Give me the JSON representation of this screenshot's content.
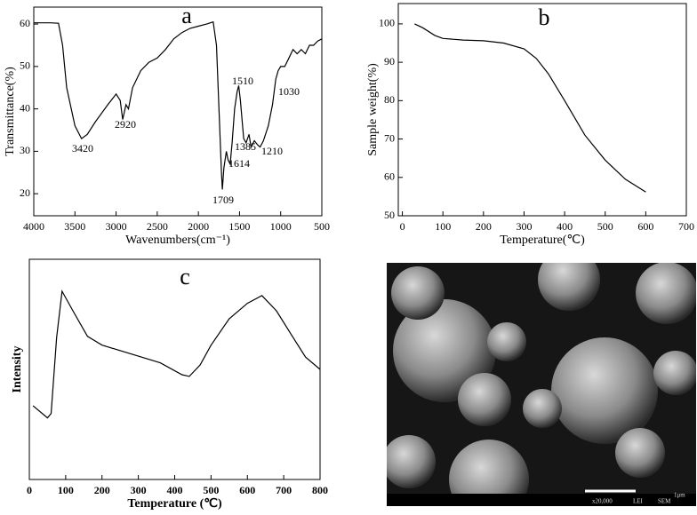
{
  "chart_data": [
    {
      "type": "line",
      "title": "a",
      "x_label": "Wavenumbers(cm⁻¹)",
      "y_label": "Transmittance(%)",
      "color": "#000000",
      "x": [
        4000,
        3800,
        3700,
        3650,
        3600,
        3500,
        3420,
        3350,
        3250,
        3100,
        3000,
        2950,
        2920,
        2880,
        2850,
        2800,
        2700,
        2600,
        2500,
        2400,
        2300,
        2200,
        2100,
        2000,
        1900,
        1820,
        1780,
        1750,
        1720,
        1709,
        1690,
        1660,
        1640,
        1614,
        1590,
        1560,
        1530,
        1510,
        1490,
        1450,
        1420,
        1385,
        1360,
        1320,
        1280,
        1250,
        1210,
        1150,
        1100,
        1060,
        1030,
        1000,
        950,
        900,
        850,
        800,
        750,
        700,
        650,
        600,
        550,
        500
      ],
      "values": [
        60.3,
        60.3,
        60.2,
        55,
        45,
        36,
        33,
        34,
        37,
        41,
        43.5,
        42,
        37.5,
        41,
        40,
        45,
        49,
        51,
        52,
        54,
        56.5,
        58,
        59,
        59.5,
        60,
        60.5,
        55,
        40,
        25,
        21,
        26,
        30,
        28,
        27,
        32,
        40,
        44,
        45.5,
        42,
        33,
        32,
        34,
        31,
        32.5,
        31.5,
        31,
        32.5,
        36,
        41,
        47,
        49,
        50,
        50,
        52,
        54,
        53,
        54,
        53,
        55,
        55,
        56,
        56.5
      ],
      "xlim": [
        4000,
        500
      ],
      "xticks": [
        4000,
        3500,
        3000,
        2500,
        2000,
        1500,
        1000,
        500
      ],
      "ylim": [
        14.8,
        64
      ],
      "yticks": [
        20,
        30,
        40,
        50,
        60
      ],
      "annotations": [
        "3420",
        "2920",
        "1709",
        "1614",
        "1510",
        "1385",
        "1210",
        "1030"
      ]
    },
    {
      "type": "line",
      "title": "b",
      "x_label": "Temperature(℃)",
      "y_label": "Sample weight(%)",
      "color": "#000000",
      "x": [
        30,
        50,
        80,
        100,
        150,
        200,
        250,
        300,
        330,
        360,
        400,
        450,
        500,
        550,
        600
      ],
      "values": [
        100,
        99,
        97,
        96.2,
        95.8,
        95.6,
        95,
        93.5,
        91,
        87,
        80,
        71,
        64.5,
        59.5,
        56.2
      ],
      "xlim": [
        -10,
        700
      ],
      "xticks": [
        0,
        100,
        200,
        300,
        400,
        500,
        600,
        700
      ],
      "ylim": [
        50,
        105.3
      ],
      "yticks": [
        50,
        60,
        70,
        80,
        90,
        100
      ]
    },
    {
      "type": "line",
      "title": "c",
      "x_label": "Temperature (℃)",
      "y_label": "Intensity",
      "color": "#000000",
      "x": [
        10,
        50,
        60,
        75,
        90,
        120,
        160,
        200,
        300,
        360,
        420,
        440,
        470,
        500,
        550,
        600,
        640,
        680,
        720,
        760,
        800
      ],
      "values": [
        33.5,
        28,
        30,
        64.5,
        85.5,
        76.6,
        65,
        61,
        56,
        53,
        47.6,
        46.8,
        52,
        61,
        73,
        80,
        83.5,
        76.6,
        66,
        55.6,
        50
      ],
      "xlim": [
        0,
        800
      ],
      "xticks": [
        0,
        100,
        200,
        300,
        400,
        500,
        600,
        700,
        800
      ],
      "ylim": [
        0,
        100
      ]
    }
  ],
  "image": {
    "labels": [
      "1μm",
      "x20,000",
      "LEI",
      "SEM"
    ]
  }
}
